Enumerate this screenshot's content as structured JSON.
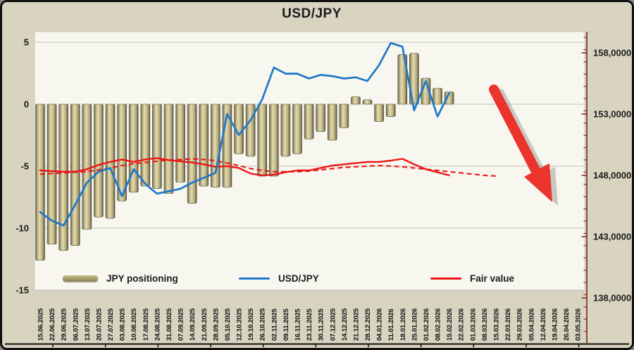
{
  "title": "USD/JPY",
  "legend": {
    "items": [
      {
        "label": "JPY positioning",
        "type": "bar"
      },
      {
        "label": "USD/JPY",
        "type": "line"
      },
      {
        "label": "Fair value",
        "type": "line"
      }
    ]
  },
  "chart_data": {
    "type": "bar",
    "subtype": "combo-bar-line-dual-axis",
    "title": "USD/JPY",
    "grid": true,
    "legend_position": "bottom-inside",
    "categories": [
      "15.06.2025",
      "22.06.2025",
      "29.06.2025",
      "06.07.2025",
      "13.07.2025",
      "20.07.2025",
      "27.07.2025",
      "03.08.2025",
      "10.08.2025",
      "17.08.2025",
      "24.08.2025",
      "31.08.2025",
      "07.09.2025",
      "14.09.2025",
      "21.09.2025",
      "28.09.2025",
      "05.10.2025",
      "12.10.2025",
      "19.10.2025",
      "26.10.2025",
      "02.11.2025",
      "09.11.2025",
      "16.11.2025",
      "23.11.2025",
      "30.11.2025",
      "07.12.2025",
      "14.12.2025",
      "21.12.2025",
      "28.12.2025",
      "04.01.2026",
      "11.01.2026",
      "18.01.2026",
      "25.01.2026",
      "01.02.2026",
      "08.02.2026",
      "15.02.2026",
      "22.02.2026",
      "01.03.2026",
      "08.03.2026",
      "15.03.2026",
      "22.03.2026",
      "29.03.2026",
      "05.04.2026",
      "12.04.2026",
      "19.04.2026",
      "26.04.2026",
      "03.05.2026"
    ],
    "series": [
      {
        "name": "JPY positioning",
        "type": "bar",
        "axis": "left",
        "values": [
          -12.6,
          -11.3,
          -11.8,
          -11.4,
          -10.1,
          -9.1,
          -9.2,
          -7.8,
          -7.1,
          -6.6,
          -6.8,
          -7.2,
          -6.3,
          -8.0,
          -6.6,
          -6.7,
          -6.7,
          -4.0,
          -4.2,
          -5.8,
          -5.8,
          -4.2,
          -4.0,
          -2.8,
          -2.2,
          -2.9,
          -1.9,
          0.6,
          0.35,
          -1.4,
          -1.0,
          4.0,
          4.1,
          2.1,
          1.3,
          1.0
        ]
      },
      {
        "name": "USD/JPY",
        "type": "line",
        "axis": "right",
        "values": [
          145.0,
          144.3,
          143.9,
          145.6,
          147.4,
          148.3,
          148.6,
          146.3,
          148.5,
          147.3,
          146.5,
          146.7,
          146.9,
          147.4,
          147.8,
          148.2,
          153.0,
          151.3,
          152.5,
          154.2,
          156.8,
          156.3,
          156.3,
          155.9,
          156.2,
          156.1,
          155.9,
          156.0,
          155.7,
          157.0,
          158.8,
          158.5,
          153.3,
          155.7,
          152.8,
          154.7
        ]
      },
      {
        "name": "Fair value",
        "type": "line",
        "axis": "right",
        "values": [
          148.4,
          148.35,
          148.3,
          148.3,
          148.5,
          148.85,
          149.1,
          149.3,
          149.1,
          149.3,
          149.4,
          149.25,
          149.15,
          149.05,
          148.9,
          148.7,
          148.75,
          148.6,
          148.15,
          148.0,
          148.05,
          148.25,
          148.4,
          148.4,
          148.6,
          148.8,
          148.9,
          149.0,
          149.1,
          149.1,
          149.2,
          149.35,
          148.9,
          148.5,
          148.25,
          148.0
        ]
      },
      {
        "name": "Fair value (dashed projection)",
        "type": "line-dashed",
        "axis": "right",
        "values": [
          148.1,
          148.15,
          148.2,
          148.25,
          148.3,
          148.45,
          148.6,
          148.8,
          148.95,
          149.05,
          149.15,
          149.25,
          149.3,
          149.35,
          149.3,
          149.2,
          149.0,
          148.8,
          148.55,
          148.4,
          148.3,
          148.3,
          148.3,
          148.35,
          148.45,
          148.55,
          148.65,
          148.7,
          148.75,
          148.8,
          148.75,
          148.7,
          148.6,
          148.5,
          148.4,
          148.3,
          148.2,
          148.1,
          148.0,
          147.95
        ]
      }
    ],
    "left_axis": {
      "ticks": [
        5,
        0,
        -5,
        -10,
        -15
      ],
      "range": [
        -15,
        6.8
      ]
    },
    "right_axis": {
      "tick_values": [
        158,
        153,
        148,
        143,
        138
      ],
      "tick_labels": [
        "158,0000",
        "153,0000",
        "148,0000",
        "143,0000",
        "138,0000"
      ],
      "range": [
        136.5,
        159.6
      ]
    },
    "annotation": {
      "type": "big-red-arrow",
      "direction": "down-right",
      "meaning": "expected USD/JPY decline"
    },
    "colors": {
      "outer_bg": "#d8d4c0",
      "plot_bg": "#f7f6ef",
      "grid": "#c6c4ba",
      "bar_light": "#e3dcb2",
      "bar_mid": "#b3a978",
      "bar_dark": "#6c6650",
      "usdjpy_line": "#1e78c8",
      "fair_value_line": "#ee1515",
      "right_axis": "#7a241c",
      "arrow": "#ea342c",
      "text": "#1b1b1b"
    }
  }
}
